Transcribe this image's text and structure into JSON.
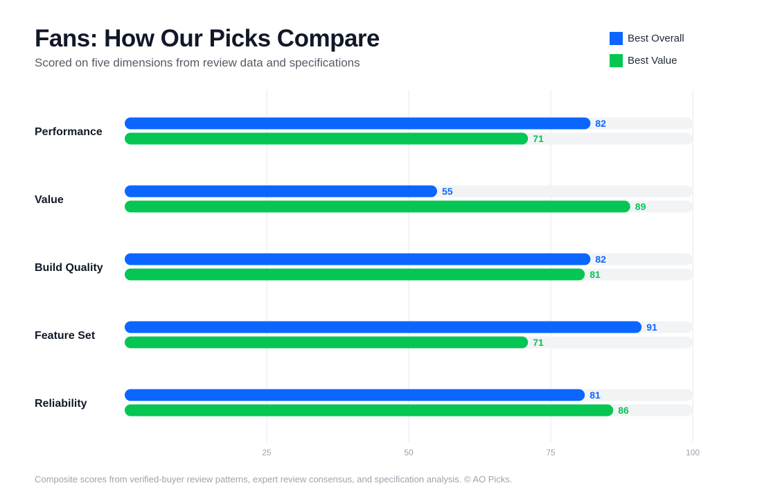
{
  "header": {
    "title": "Fans: How Our Picks Compare",
    "subtitle": "Scored on five dimensions from review data and specifications"
  },
  "legend": [
    {
      "label": "Best Overall",
      "color": "#0a66ff"
    },
    {
      "label": "Best Value",
      "color": "#05c653"
    }
  ],
  "footnote": "Composite scores from verified-buyer review patterns, expert review consensus, and specification analysis. © AO Picks.",
  "chart_data": {
    "type": "bar",
    "orientation": "horizontal",
    "categories": [
      "Performance",
      "Value",
      "Build Quality",
      "Feature Set",
      "Reliability"
    ],
    "series": [
      {
        "name": "Best Overall",
        "color": "#0a66ff",
        "values": [
          82,
          55,
          82,
          91,
          81
        ]
      },
      {
        "name": "Best Value",
        "color": "#05c653",
        "values": [
          71,
          89,
          81,
          71,
          86
        ]
      }
    ],
    "xlim": [
      0,
      100
    ],
    "xticks": [
      25,
      50,
      75,
      100
    ],
    "track_color": "#f2f3f5",
    "grid": true,
    "legend_position": "top-right"
  }
}
